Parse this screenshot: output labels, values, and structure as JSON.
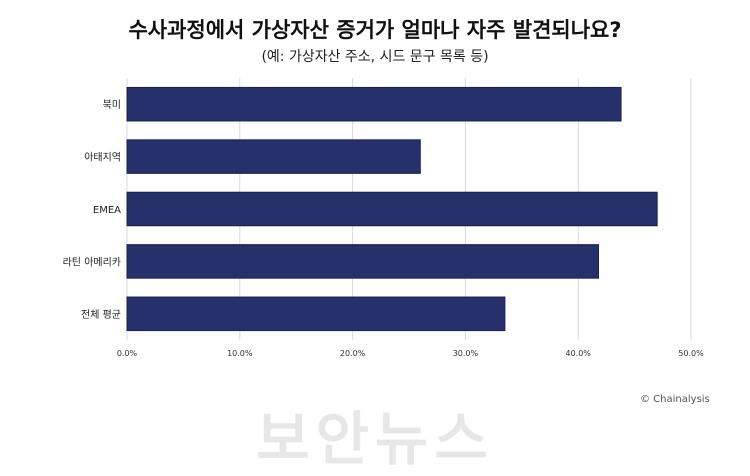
{
  "chart_data": {
    "type": "bar",
    "orientation": "horizontal",
    "title": "수사과정에서 가상자산 증거가 얼마나 자주 발견되나요?",
    "subtitle": "(예: 가상자산 주소, 시드 문구 목록 등)",
    "categories": [
      "북미",
      "아태지역",
      "EMEA",
      "라틴 아메리카",
      "전체 평균"
    ],
    "values": [
      43.8,
      26.0,
      47.0,
      41.8,
      33.5
    ],
    "xlim": [
      0,
      50
    ],
    "xticks": [
      "0.0%",
      "10.0%",
      "20.0%",
      "30.0%",
      "40.0%",
      "50.0%"
    ],
    "grid": true,
    "bar_color": "#26306a",
    "credit": "© Chainalysis",
    "watermark": "보안뉴스"
  }
}
